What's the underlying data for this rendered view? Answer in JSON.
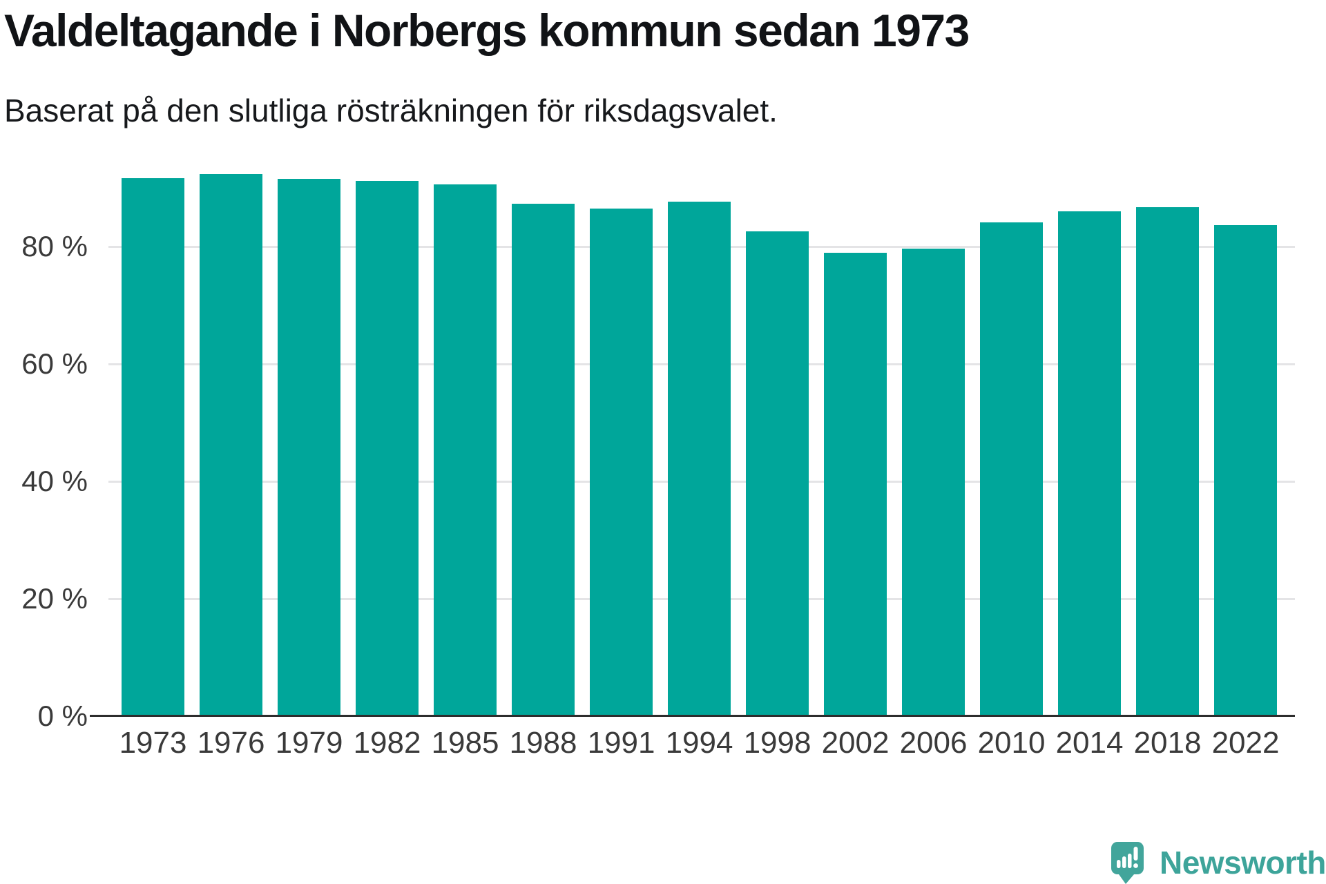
{
  "title": "Valdeltagande i Norbergs kommun sedan 1973",
  "subtitle": "Baserat på den slutliga rösträkningen för riksdagsvalet.",
  "chart_data": {
    "type": "bar",
    "title": "Valdeltagande i Norbergs kommun sedan 1973",
    "subtitle": "Baserat på den slutliga rösträkningen för riksdagsvalet.",
    "categories": [
      "1973",
      "1976",
      "1979",
      "1982",
      "1985",
      "1988",
      "1991",
      "1994",
      "1998",
      "2002",
      "2006",
      "2010",
      "2014",
      "2018",
      "2022"
    ],
    "values": [
      91.6,
      92.4,
      91.5,
      91.2,
      90.6,
      87.3,
      86.5,
      87.6,
      82.6,
      79.0,
      79.6,
      84.1,
      86.0,
      86.7,
      83.6
    ],
    "unit": "%",
    "ylim": [
      0,
      100
    ],
    "yticks": [
      0,
      20,
      40,
      60,
      80
    ],
    "ytick_labels": [
      "0 %",
      "20 %",
      "40 %",
      "60 %",
      "80 %"
    ],
    "xlabel": "",
    "ylabel": "",
    "grid": true,
    "legend": "none",
    "bar_color": "#00a69a"
  },
  "branding": {
    "logo_text": "Newsworthy",
    "logo_color": "#3da49a"
  },
  "colors": {
    "bar": "#00a69a",
    "axis": "#2d2d2d",
    "gridline": "#e4e4e6",
    "title_text": "#111316",
    "subtitle_text": "#17191c",
    "tick_text": "#3a3a3a"
  }
}
